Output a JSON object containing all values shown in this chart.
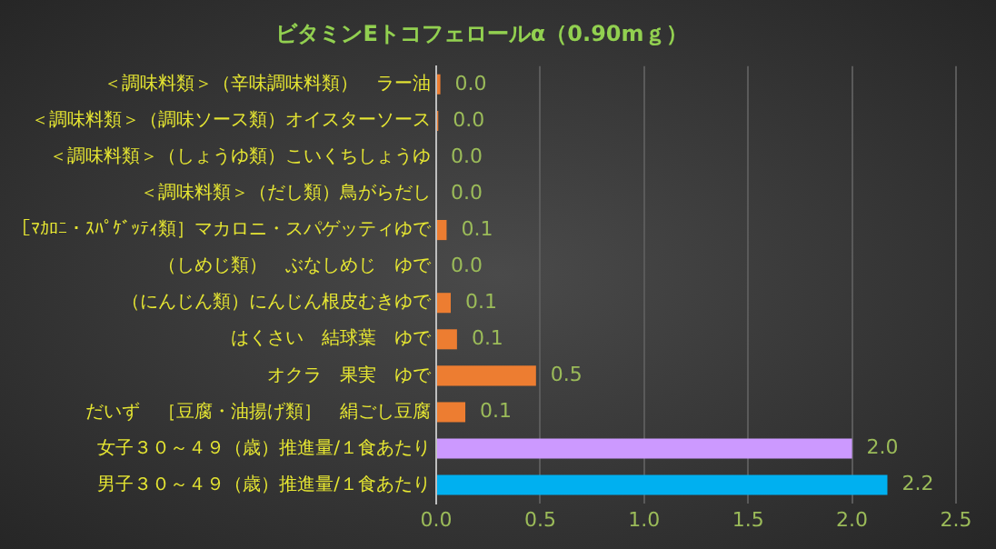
{
  "chart_data": {
    "type": "bar",
    "orientation": "horizontal",
    "title": "ビタミンEトコフェロールα（0.90mｇ）",
    "categories": [
      "＜調味料類＞（辛味調味料類）　ラー油",
      "＜調味料類＞（調味ソース類）オイスターソース",
      "＜調味料類＞（しょうゆ類）こいくちしょうゆ",
      "＜調味料類＞（だし類）鳥がらだし",
      "［ﾏｶﾛﾆ・ｽﾊﾟｹﾞｯﾃｨ類］マカロニ・スパゲッティゆで",
      "（しめじ類）　ぶなしめじ　ゆで",
      "（にんじん類）にんじん根皮むきゆで",
      "はくさい　結球葉　ゆで",
      "オクラ　果実　ゆで",
      "だいず　［豆腐・油揚げ類］　絹ごし豆腐",
      "女子３０～４９（歳）推進量/１食あたり",
      "男子３０～４９（歳）推進量/１食あたり"
    ],
    "values": [
      0.02,
      0.01,
      0,
      0,
      0.05,
      0,
      0.07,
      0.1,
      0.48,
      0.14,
      2.0,
      2.17
    ],
    "colors": [
      "#ed7d31",
      "#ed7d31",
      "#ed7d31",
      "#ed7d31",
      "#ed7d31",
      "#ed7d31",
      "#ed7d31",
      "#ed7d31",
      "#ed7d31",
      "#ed7d31",
      "#cc99ff",
      "#00b0f0"
    ],
    "value_labels": [
      "0.0",
      "0.0",
      "0.0",
      "0.0",
      "0.1",
      "0.0",
      "0.1",
      "0.1",
      "0.5",
      "0.1",
      "2.0",
      "2.2"
    ],
    "xlim": [
      0,
      2.5
    ],
    "xticks": [
      {
        "value": 0,
        "label": "0.0"
      },
      {
        "value": 0.5,
        "label": "0.5"
      },
      {
        "value": 1,
        "label": "1.0"
      },
      {
        "value": 1.5,
        "label": "1.5"
      },
      {
        "value": 2,
        "label": "2.0"
      },
      {
        "value": 2.5,
        "label": "2.5"
      }
    ],
    "grid": "x",
    "legend": false
  }
}
